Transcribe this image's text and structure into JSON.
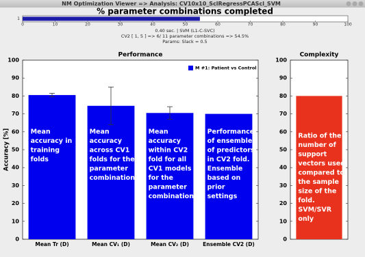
{
  "window": {
    "title": "NM Optimization Viewer => Analysis: CV10x10_SclRegressPCAScl_SVM"
  },
  "chart_data": [
    {
      "type": "progress",
      "title": "% parameter combinations completed",
      "value": 54.5,
      "color": "#1c1ca8",
      "xlim": [
        0,
        100
      ],
      "xticks": [
        0,
        10,
        20,
        30,
        40,
        50,
        60,
        70,
        80,
        90,
        100
      ],
      "ylim": [
        0.5,
        1.5
      ],
      "yticks": [
        1
      ],
      "info": [
        "0.40 sec. | SVM (L1-C-SVC)",
        "CV2 [ 1, 5 ] =>   6/ 11 parameter combinations => 54.5%",
        "Params: Slack = 0.5"
      ]
    },
    {
      "type": "bar",
      "title": "Performance",
      "ylabel": "Accuracy [%]",
      "categories": [
        "Mean Tr (D)",
        "Mean CV₁ (D)",
        "Mean CV₂ (D)",
        "Ensemble CV2 (D)"
      ],
      "series": [
        {
          "name": "M #1: Patient vs Control",
          "color": "#0000ee",
          "values": [
            80.5,
            74.5,
            70.5,
            70
          ],
          "errors": [
            1,
            10.5,
            3.5,
            null
          ]
        }
      ],
      "ylim": [
        0,
        100
      ],
      "yticks": [
        0,
        10,
        20,
        30,
        40,
        50,
        60,
        70,
        80,
        90,
        100
      ],
      "annotations": [
        [
          "Mean",
          "accuracy in",
          "training",
          "folds"
        ],
        [
          "Mean",
          "accuracy",
          "across CV1",
          "folds for the",
          "parameter",
          "combination"
        ],
        [
          "Mean",
          "accuracy",
          "within CV2",
          "fold for all",
          "CV1 models",
          "for the",
          "parameter",
          "combination"
        ],
        [
          "Performance",
          "of ensemble",
          "of predictors",
          "in CV2 fold.",
          "Ensemble",
          "based on",
          "prior",
          "settings"
        ]
      ]
    },
    {
      "type": "bar",
      "title": "Complexity",
      "categories": [
        null
      ],
      "series": [
        {
          "color": "#e8321e",
          "values": [
            80
          ]
        }
      ],
      "ylim": [
        0,
        100
      ],
      "yticks": [
        0,
        10,
        20,
        30,
        40,
        50,
        60,
        70,
        80,
        90,
        100
      ],
      "annotations": [
        [
          "Ratio of the",
          "number of",
          "support",
          "vectors used",
          "compared to",
          "the sample",
          "size of the",
          "fold.",
          "SVM/SVR",
          "only"
        ]
      ]
    }
  ]
}
